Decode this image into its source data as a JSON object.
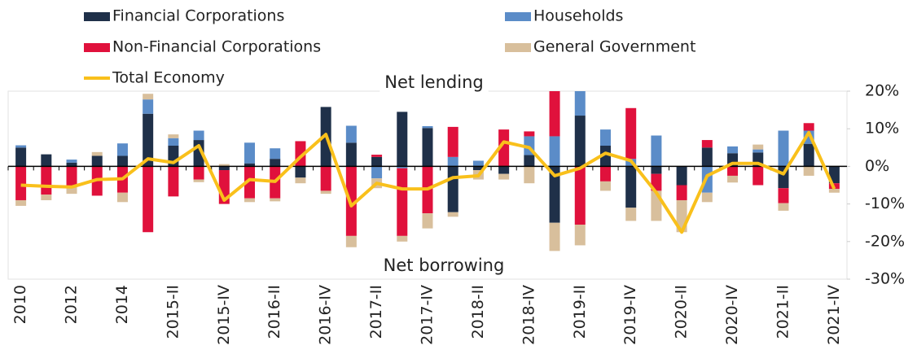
{
  "chart_data": {
    "type": "bar",
    "stacked": true,
    "annotations": [
      "Net lending",
      "Net borrowing"
    ],
    "categories": [
      "2010",
      null,
      "2012",
      null,
      "2014",
      null,
      "2015-II",
      null,
      "2015-IV",
      null,
      "2016-II",
      null,
      "2016-IV",
      null,
      "2017-II",
      null,
      "2017-IV",
      null,
      "2018-II",
      null,
      "2018-IV",
      null,
      "2019-II",
      null,
      "2019-IV",
      null,
      "2020-II",
      null,
      "2020-IV",
      null,
      "2021-II",
      null,
      "2021-IV"
    ],
    "series": [
      {
        "name": "Financial Corporations",
        "color": "#1f3049",
        "values": [
          5,
          3.2,
          1,
          2.8,
          2.8,
          14,
          5.5,
          7,
          -1,
          0.8,
          2,
          -3,
          15.8,
          6.3,
          2.5,
          14.5,
          10.2,
          -12.2,
          -1,
          -2,
          3,
          -15,
          13.5,
          5.5,
          -11,
          -2,
          -5,
          5,
          3.5,
          3.7,
          -5.8,
          6,
          -4.5
        ]
      },
      {
        "name": "Households",
        "color": "#5b8cc8",
        "values": [
          0.6,
          0,
          0.8,
          0,
          3.3,
          3.8,
          2,
          2.5,
          0,
          5.5,
          2.8,
          0,
          0,
          4.5,
          -3.2,
          -0.5,
          0.5,
          2.5,
          1.5,
          0,
          5,
          8,
          6.5,
          4.3,
          2,
          8.2,
          0,
          -7,
          1.8,
          0.8,
          9.5,
          3.5,
          0
        ]
      },
      {
        "name": "Non-Financial Corporations",
        "color": "#e0113c",
        "values": [
          -9,
          -7.5,
          -5.5,
          -7.8,
          -7,
          -17.5,
          -8,
          -3.5,
          -9,
          -8.5,
          -8.5,
          6.7,
          -6.5,
          -18.5,
          0.6,
          -18,
          -12.5,
          8,
          0,
          9.8,
          1.3,
          12,
          -15.5,
          -4,
          13.5,
          -4.5,
          -4,
          2,
          -2.5,
          -5,
          -4,
          2,
          -1.5
        ]
      },
      {
        "name": "General Government",
        "color": "#d8bf9c",
        "values": [
          -1.5,
          -1.5,
          -1.8,
          1,
          -2.5,
          1.5,
          1,
          -0.7,
          0.6,
          -1,
          -0.8,
          -1.5,
          -0.8,
          -3,
          -2.6,
          -1.5,
          -4,
          -1.2,
          -2.5,
          -1.5,
          -4.5,
          -7.5,
          -5.5,
          -2.5,
          -3.5,
          -8,
          -8.5,
          -2.5,
          -1.8,
          1.3,
          -2,
          -2.5,
          -1
        ]
      },
      {
        "name": "Total Economy",
        "type": "line",
        "color": "#f9c01b",
        "values": [
          -5,
          -5.3,
          -5.5,
          -3.5,
          -3.3,
          2,
          1,
          5.5,
          -9,
          -3.5,
          -4,
          2.5,
          8.5,
          -10.5,
          -4.5,
          -6,
          -6,
          -3,
          -2.5,
          6.5,
          5,
          -2.5,
          -0.5,
          3.5,
          1.5,
          -7,
          -17.5,
          -2.5,
          0.8,
          0.8,
          -2,
          9,
          -6
        ]
      }
    ],
    "ylim": [
      -30,
      20
    ],
    "yticks": [
      {
        "value": 20,
        "label": "20%"
      },
      {
        "value": 10,
        "label": "10%"
      },
      {
        "value": 0,
        "label": "0%"
      },
      {
        "value": -10,
        "label": "-10%"
      },
      {
        "value": -20,
        "label": "-20%"
      },
      {
        "value": -30,
        "label": "-30%"
      }
    ],
    "grid": false
  }
}
